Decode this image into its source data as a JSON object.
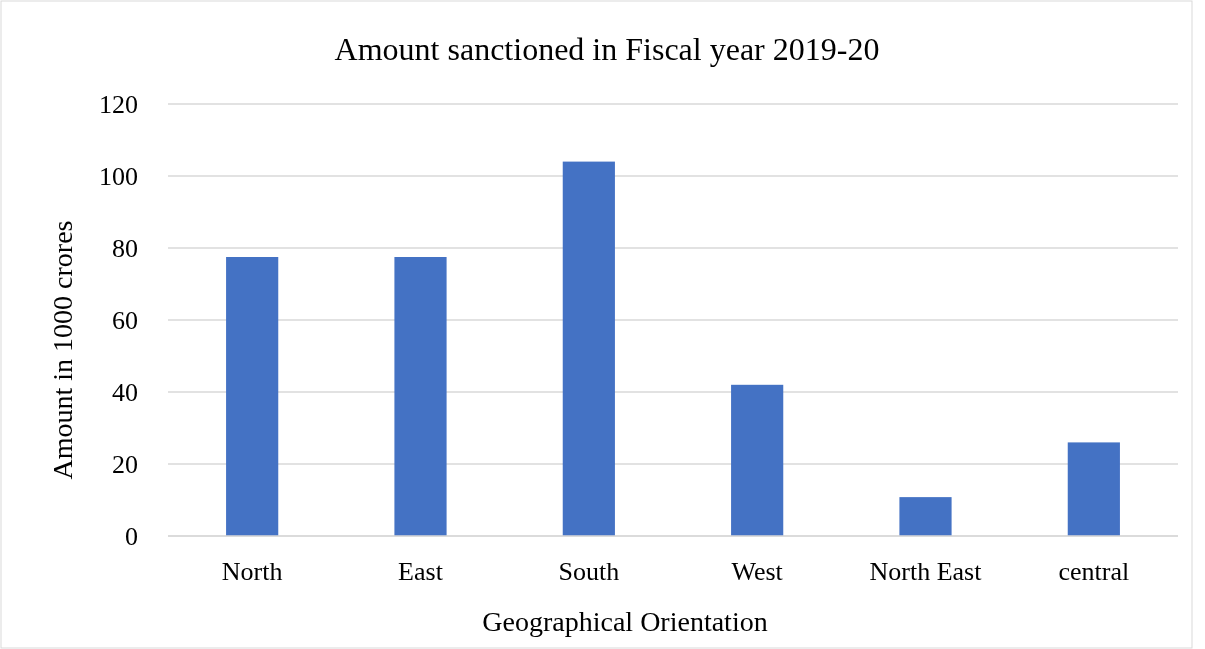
{
  "chart_data": {
    "type": "bar",
    "title": "Amount sanctioned in Fiscal year 2019-20",
    "xlabel": "Geographical Orientation",
    "ylabel": "Amount in 1000 crores",
    "categories": [
      "North",
      "East",
      "South",
      "West",
      "North East",
      "central"
    ],
    "values": [
      77.5,
      77.5,
      104,
      42,
      10.8,
      26
    ],
    "color": "#4472c4",
    "ylim": [
      0,
      120
    ],
    "yticks": [
      0,
      20,
      40,
      60,
      80,
      100,
      120
    ],
    "grid": "y"
  }
}
